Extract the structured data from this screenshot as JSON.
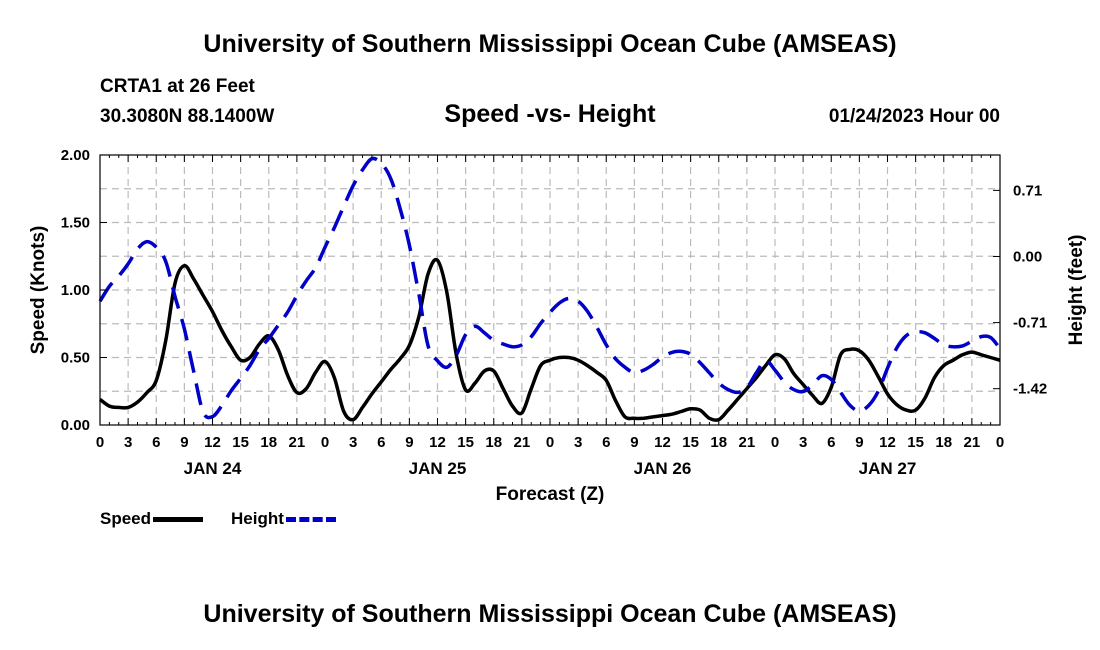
{
  "chart_data": {
    "type": "line",
    "title": "Speed -vs- Height",
    "suptitle": "University of Southern Mississippi Ocean Cube (AMSEAS)",
    "station": "CRTA1 at 26 Feet",
    "location": "30.3080N  88.1400W",
    "run_date": "01/24/2023 Hour 00",
    "xlabel": "Forecast (Z)",
    "ylabel_left": "Speed (Knots)",
    "ylabel_right": "Height (feet)",
    "xlim": [
      0,
      96
    ],
    "ylim_left": [
      0,
      2.0
    ],
    "ylim_right": [
      -1.81,
      1.09
    ],
    "x_ticks": [
      0,
      3,
      6,
      9,
      12,
      15,
      18,
      21,
      24,
      27,
      30,
      33,
      36,
      39,
      42,
      45,
      48,
      51,
      54,
      57,
      60,
      63,
      66,
      69,
      72,
      75,
      78,
      81,
      84,
      87,
      90,
      93,
      96
    ],
    "x_tick_labels": [
      "0",
      "3",
      "6",
      "9",
      "12",
      "15",
      "18",
      "21",
      "0",
      "3",
      "6",
      "9",
      "12",
      "15",
      "18",
      "21",
      "0",
      "3",
      "6",
      "9",
      "12",
      "15",
      "18",
      "21",
      "0",
      "3",
      "6",
      "9",
      "12",
      "15",
      "18",
      "21",
      "0"
    ],
    "day_labels": [
      {
        "x": 12,
        "label": "JAN 24"
      },
      {
        "x": 36,
        "label": "JAN 25"
      },
      {
        "x": 60,
        "label": "JAN 26"
      },
      {
        "x": 84,
        "label": "JAN 27"
      }
    ],
    "y_ticks_left": [
      0.0,
      0.5,
      1.0,
      1.5,
      2.0
    ],
    "y_tick_labels_left": [
      "0.00",
      "0.50",
      "1.00",
      "1.50",
      "2.00"
    ],
    "y_ticks_right": [
      0.71,
      0.0,
      -0.71,
      -1.42
    ],
    "y_tick_labels_right": [
      "0.71",
      "0.00",
      "-0.71",
      "-1.42"
    ],
    "grid": true,
    "series": [
      {
        "name": "Speed",
        "axis": "left",
        "color": "#000000",
        "dash": "solid",
        "points": [
          [
            0,
            0.19
          ],
          [
            1,
            0.14
          ],
          [
            2,
            0.13
          ],
          [
            3,
            0.13
          ],
          [
            4,
            0.17
          ],
          [
            5,
            0.24
          ],
          [
            6,
            0.33
          ],
          [
            7,
            0.62
          ],
          [
            8,
            1.05
          ],
          [
            9,
            1.18
          ],
          [
            10,
            1.08
          ],
          [
            11,
            0.96
          ],
          [
            12,
            0.84
          ],
          [
            13,
            0.7
          ],
          [
            14,
            0.58
          ],
          [
            15,
            0.48
          ],
          [
            16,
            0.5
          ],
          [
            17,
            0.6
          ],
          [
            18,
            0.66
          ],
          [
            19,
            0.56
          ],
          [
            20,
            0.37
          ],
          [
            21,
            0.24
          ],
          [
            22,
            0.27
          ],
          [
            23,
            0.39
          ],
          [
            24,
            0.47
          ],
          [
            25,
            0.35
          ],
          [
            26,
            0.1
          ],
          [
            27,
            0.04
          ],
          [
            28,
            0.13
          ],
          [
            29,
            0.23
          ],
          [
            30,
            0.32
          ],
          [
            31,
            0.41
          ],
          [
            32,
            0.49
          ],
          [
            33,
            0.59
          ],
          [
            34,
            0.8
          ],
          [
            35,
            1.12
          ],
          [
            36,
            1.22
          ],
          [
            37,
            0.98
          ],
          [
            38,
            0.52
          ],
          [
            39,
            0.26
          ],
          [
            40,
            0.31
          ],
          [
            41,
            0.4
          ],
          [
            42,
            0.4
          ],
          [
            43,
            0.27
          ],
          [
            44,
            0.14
          ],
          [
            45,
            0.09
          ],
          [
            46,
            0.27
          ],
          [
            47,
            0.44
          ],
          [
            48,
            0.48
          ],
          [
            49,
            0.5
          ],
          [
            50,
            0.5
          ],
          [
            51,
            0.48
          ],
          [
            52,
            0.44
          ],
          [
            53,
            0.39
          ],
          [
            54,
            0.33
          ],
          [
            55,
            0.18
          ],
          [
            56,
            0.06
          ],
          [
            57,
            0.05
          ],
          [
            58,
            0.05
          ],
          [
            59,
            0.06
          ],
          [
            60,
            0.07
          ],
          [
            61,
            0.08
          ],
          [
            62,
            0.1
          ],
          [
            63,
            0.12
          ],
          [
            64,
            0.11
          ],
          [
            65,
            0.05
          ],
          [
            66,
            0.04
          ],
          [
            67,
            0.11
          ],
          [
            68,
            0.19
          ],
          [
            69,
            0.27
          ],
          [
            70,
            0.35
          ],
          [
            71,
            0.44
          ],
          [
            72,
            0.52
          ],
          [
            73,
            0.49
          ],
          [
            74,
            0.38
          ],
          [
            75,
            0.3
          ],
          [
            76,
            0.22
          ],
          [
            77,
            0.16
          ],
          [
            78,
            0.28
          ],
          [
            79,
            0.52
          ],
          [
            80,
            0.56
          ],
          [
            81,
            0.55
          ],
          [
            82,
            0.48
          ],
          [
            83,
            0.36
          ],
          [
            84,
            0.23
          ],
          [
            85,
            0.15
          ],
          [
            86,
            0.11
          ],
          [
            87,
            0.11
          ],
          [
            88,
            0.2
          ],
          [
            89,
            0.35
          ],
          [
            90,
            0.44
          ],
          [
            91,
            0.48
          ],
          [
            92,
            0.52
          ],
          [
            93,
            0.54
          ],
          [
            94,
            0.52
          ],
          [
            95,
            0.5
          ],
          [
            96,
            0.48
          ]
        ]
      },
      {
        "name": "Height",
        "axis": "right",
        "color": "#0000c8",
        "dash": "dashed",
        "points": [
          [
            0,
            -0.48
          ],
          [
            1,
            -0.32
          ],
          [
            2,
            -0.21
          ],
          [
            3,
            -0.08
          ],
          [
            4,
            0.08
          ],
          [
            5,
            0.16
          ],
          [
            6,
            0.1
          ],
          [
            7,
            -0.05
          ],
          [
            8,
            -0.43
          ],
          [
            9,
            -0.78
          ],
          [
            10,
            -1.24
          ],
          [
            11,
            -1.67
          ],
          [
            12,
            -1.72
          ],
          [
            13,
            -1.6
          ],
          [
            14,
            -1.44
          ],
          [
            15,
            -1.31
          ],
          [
            16,
            -1.17
          ],
          [
            17,
            -1.0
          ],
          [
            18,
            -0.88
          ],
          [
            19,
            -0.74
          ],
          [
            20,
            -0.6
          ],
          [
            21,
            -0.42
          ],
          [
            22,
            -0.26
          ],
          [
            23,
            -0.12
          ],
          [
            24,
            0.1
          ],
          [
            25,
            0.31
          ],
          [
            26,
            0.54
          ],
          [
            27,
            0.76
          ],
          [
            28,
            0.93
          ],
          [
            29,
            1.05
          ],
          [
            30,
            1.0
          ],
          [
            31,
            0.84
          ],
          [
            32,
            0.52
          ],
          [
            33,
            0.12
          ],
          [
            34,
            -0.4
          ],
          [
            35,
            -0.96
          ],
          [
            36,
            -1.12
          ],
          [
            37,
            -1.19
          ],
          [
            38,
            -1.06
          ],
          [
            39,
            -0.84
          ],
          [
            40,
            -0.75
          ],
          [
            41,
            -0.82
          ],
          [
            42,
            -0.9
          ],
          [
            43,
            -0.94
          ],
          [
            44,
            -0.97
          ],
          [
            45,
            -0.95
          ],
          [
            46,
            -0.86
          ],
          [
            47,
            -0.72
          ],
          [
            48,
            -0.6
          ],
          [
            49,
            -0.5
          ],
          [
            50,
            -0.45
          ],
          [
            51,
            -0.48
          ],
          [
            52,
            -0.59
          ],
          [
            53,
            -0.76
          ],
          [
            54,
            -0.95
          ],
          [
            55,
            -1.1
          ],
          [
            56,
            -1.19
          ],
          [
            57,
            -1.25
          ],
          [
            58,
            -1.22
          ],
          [
            59,
            -1.16
          ],
          [
            60,
            -1.08
          ],
          [
            61,
            -1.03
          ],
          [
            62,
            -1.02
          ],
          [
            63,
            -1.05
          ],
          [
            64,
            -1.14
          ],
          [
            65,
            -1.25
          ],
          [
            66,
            -1.36
          ],
          [
            67,
            -1.43
          ],
          [
            68,
            -1.46
          ],
          [
            69,
            -1.41
          ],
          [
            70,
            -1.25
          ],
          [
            71,
            -1.12
          ],
          [
            72,
            -1.22
          ],
          [
            73,
            -1.35
          ],
          [
            74,
            -1.43
          ],
          [
            75,
            -1.45
          ],
          [
            76,
            -1.38
          ],
          [
            77,
            -1.28
          ],
          [
            78,
            -1.32
          ],
          [
            79,
            -1.46
          ],
          [
            80,
            -1.6
          ],
          [
            81,
            -1.66
          ],
          [
            82,
            -1.6
          ],
          [
            83,
            -1.45
          ],
          [
            84,
            -1.2
          ],
          [
            85,
            -0.98
          ],
          [
            86,
            -0.85
          ],
          [
            87,
            -0.81
          ],
          [
            88,
            -0.82
          ],
          [
            89,
            -0.88
          ],
          [
            90,
            -0.95
          ],
          [
            91,
            -0.97
          ],
          [
            92,
            -0.96
          ],
          [
            93,
            -0.91
          ],
          [
            94,
            -0.86
          ],
          [
            95,
            -0.87
          ],
          [
            96,
            -0.99
          ]
        ]
      }
    ],
    "legend": [
      "Speed",
      "Height"
    ],
    "legend_position": "bottom-left"
  }
}
